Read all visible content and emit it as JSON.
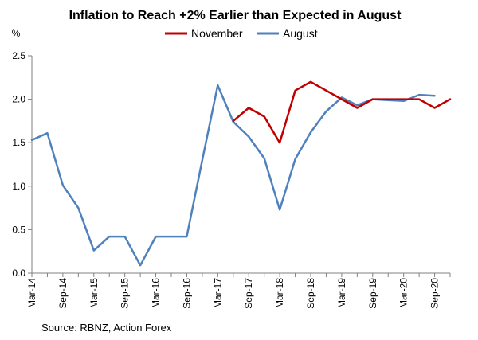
{
  "chart_data": {
    "type": "line",
    "title": "Inflation to Reach +2% Earlier than Expected in August",
    "ylabel": "%",
    "source": "Source: RBNZ, Action Forex",
    "ylim": [
      0,
      2.5
    ],
    "yticks": [
      "0.0",
      "0.5",
      "1.0",
      "1.5",
      "2.0",
      "2.5"
    ],
    "x_tick_labels": [
      "Mar-14",
      "Sep-14",
      "Mar-15",
      "Sep-15",
      "Mar-16",
      "Sep-16",
      "Mar-17",
      "Sep-17",
      "Mar-18",
      "Sep-18",
      "Mar-19",
      "Sep-19",
      "Mar-20",
      "Sep-20"
    ],
    "x": [
      "Mar-14",
      "Jun-14",
      "Sep-14",
      "Dec-14",
      "Mar-15",
      "Jun-15",
      "Sep-15",
      "Dec-15",
      "Mar-16",
      "Jun-16",
      "Sep-16",
      "Dec-16",
      "Mar-17",
      "Jun-17",
      "Sep-17",
      "Dec-17",
      "Mar-18",
      "Jun-18",
      "Sep-18",
      "Dec-18",
      "Mar-19",
      "Jun-19",
      "Sep-19",
      "Dec-19",
      "Mar-20",
      "Jun-20",
      "Sep-20",
      "Dec-20"
    ],
    "series": [
      {
        "name": "November",
        "color": "#c00000",
        "values": [
          null,
          null,
          null,
          null,
          null,
          null,
          null,
          null,
          null,
          null,
          null,
          null,
          null,
          1.75,
          1.9,
          1.8,
          1.5,
          2.1,
          2.2,
          2.1,
          2.0,
          1.9,
          2.0,
          2.0,
          2.0,
          2.0,
          1.9,
          2.0
        ]
      },
      {
        "name": "August",
        "color": "#4f81bd",
        "values": [
          1.53,
          1.61,
          1.01,
          0.75,
          0.26,
          0.42,
          0.42,
          0.09,
          0.42,
          0.42,
          0.42,
          1.3,
          2.16,
          1.74,
          1.57,
          1.32,
          0.73,
          1.31,
          1.62,
          1.86,
          2.02,
          1.93,
          2.0,
          1.99,
          1.98,
          2.05,
          2.04,
          null
        ]
      }
    ],
    "legend": "top-right"
  }
}
